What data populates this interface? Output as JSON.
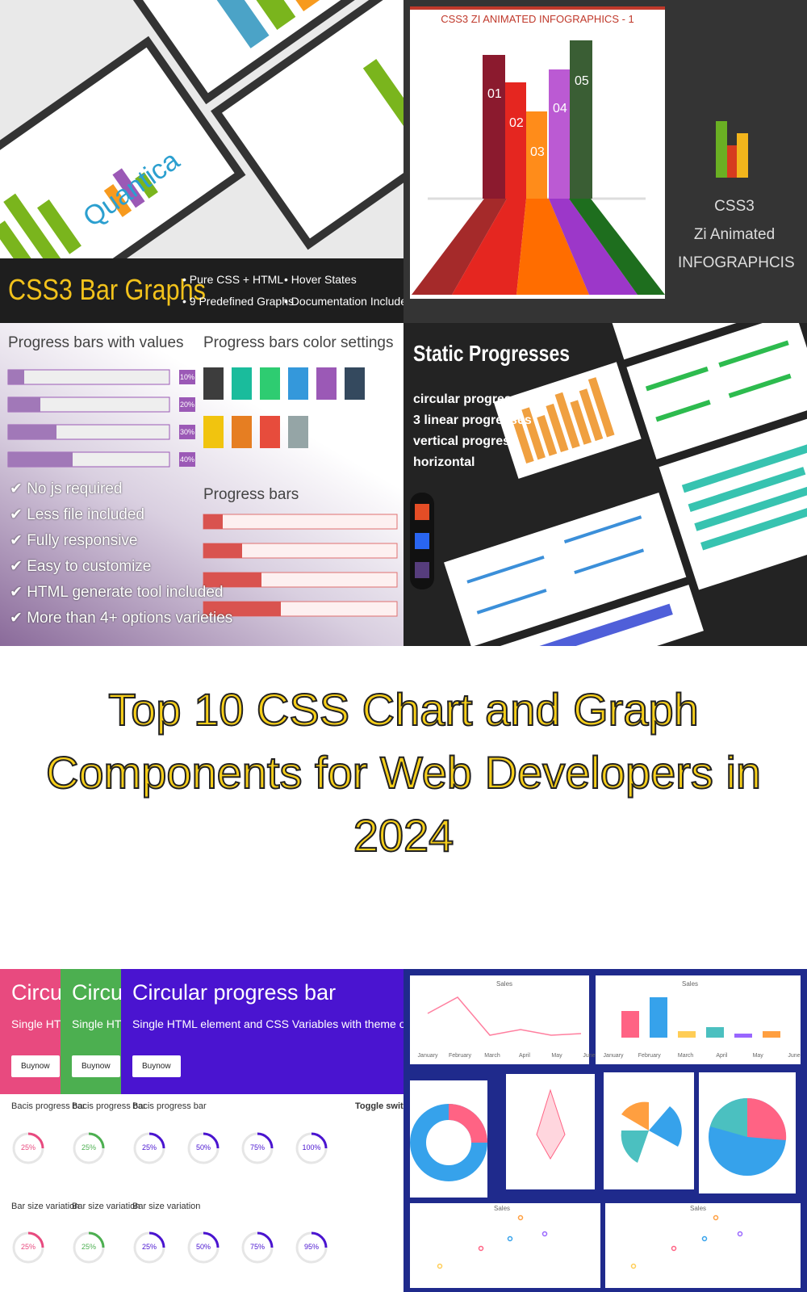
{
  "bar_graphs": {
    "brand": "Quantica",
    "title": "CSS3 Bar Graphs",
    "features": [
      "• Pure CSS + HTML",
      "• Hover States",
      "• 9 Predefined Graphs",
      "• Documentation Included"
    ]
  },
  "infographics": {
    "title": "CSS3 ZI ANIMATED INFOGRAPHICS - 1",
    "steps": [
      "01",
      "02",
      "03",
      "04",
      "05"
    ],
    "caption": [
      "CSS3",
      "Zi Animated",
      "INFOGRAPHCIS"
    ]
  },
  "progress_bars": {
    "values_title": "Progress bars with values",
    "value_labels": [
      "10%",
      "20%",
      "30%",
      "40%"
    ],
    "checklist": [
      "✔ No js required",
      "✔ Less file included",
      "✔ Fully responsive",
      "✔ Easy to customize",
      "✔ HTML generate tool included",
      "✔ More than 4+ options varieties"
    ],
    "color_title": "Progress bars color settings",
    "bars_title": "Progress bars"
  },
  "static_progresses": {
    "title": "Static Progresses",
    "bullets": [
      "circular progress",
      "3 linear progresses",
      "vertical progress",
      "horizontal"
    ]
  },
  "headline": "Top 10 CSS Chart and Graph Components for Web Developers in 2024",
  "circular": {
    "title": "Circular progress bar",
    "subtitle": "Single HTML element and CSS Variables with theme option",
    "button": "Buynow",
    "basic_title": "Bacis progress bar",
    "basic_labels": [
      "25%",
      "50%",
      "75%",
      "100%"
    ],
    "size_title": "Bar size variation",
    "size_labels": [
      "25%",
      "50%",
      "75%",
      "95%"
    ],
    "toggle_title": "Toggle switch"
  },
  "chartjs": {
    "legend": "Sales",
    "months": [
      "January",
      "February",
      "March",
      "April",
      "May",
      "June"
    ]
  }
}
